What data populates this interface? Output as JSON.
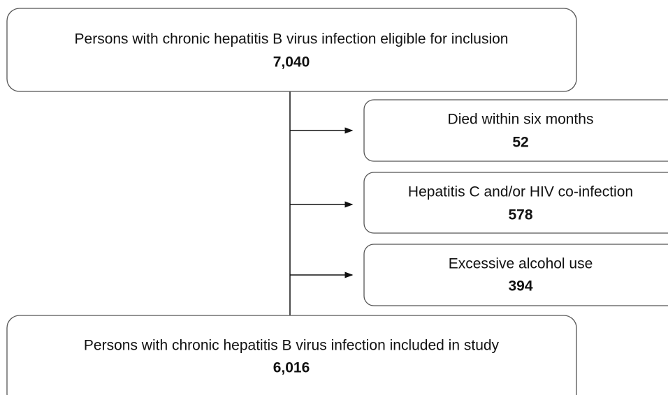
{
  "nodes": [
    {
      "label": "Persons with chronic hepatitis B virus infection eligible for inclusion",
      "count": "7,040"
    },
    {
      "label": "Died within six months",
      "count": "52"
    },
    {
      "label": "Hepatitis C and/or HIV co-infection",
      "count": "578"
    },
    {
      "label": "Excessive alcohol use",
      "count": "394"
    },
    {
      "label": "Persons with chronic hepatitis B virus infection included in study",
      "count": "6,016"
    }
  ]
}
